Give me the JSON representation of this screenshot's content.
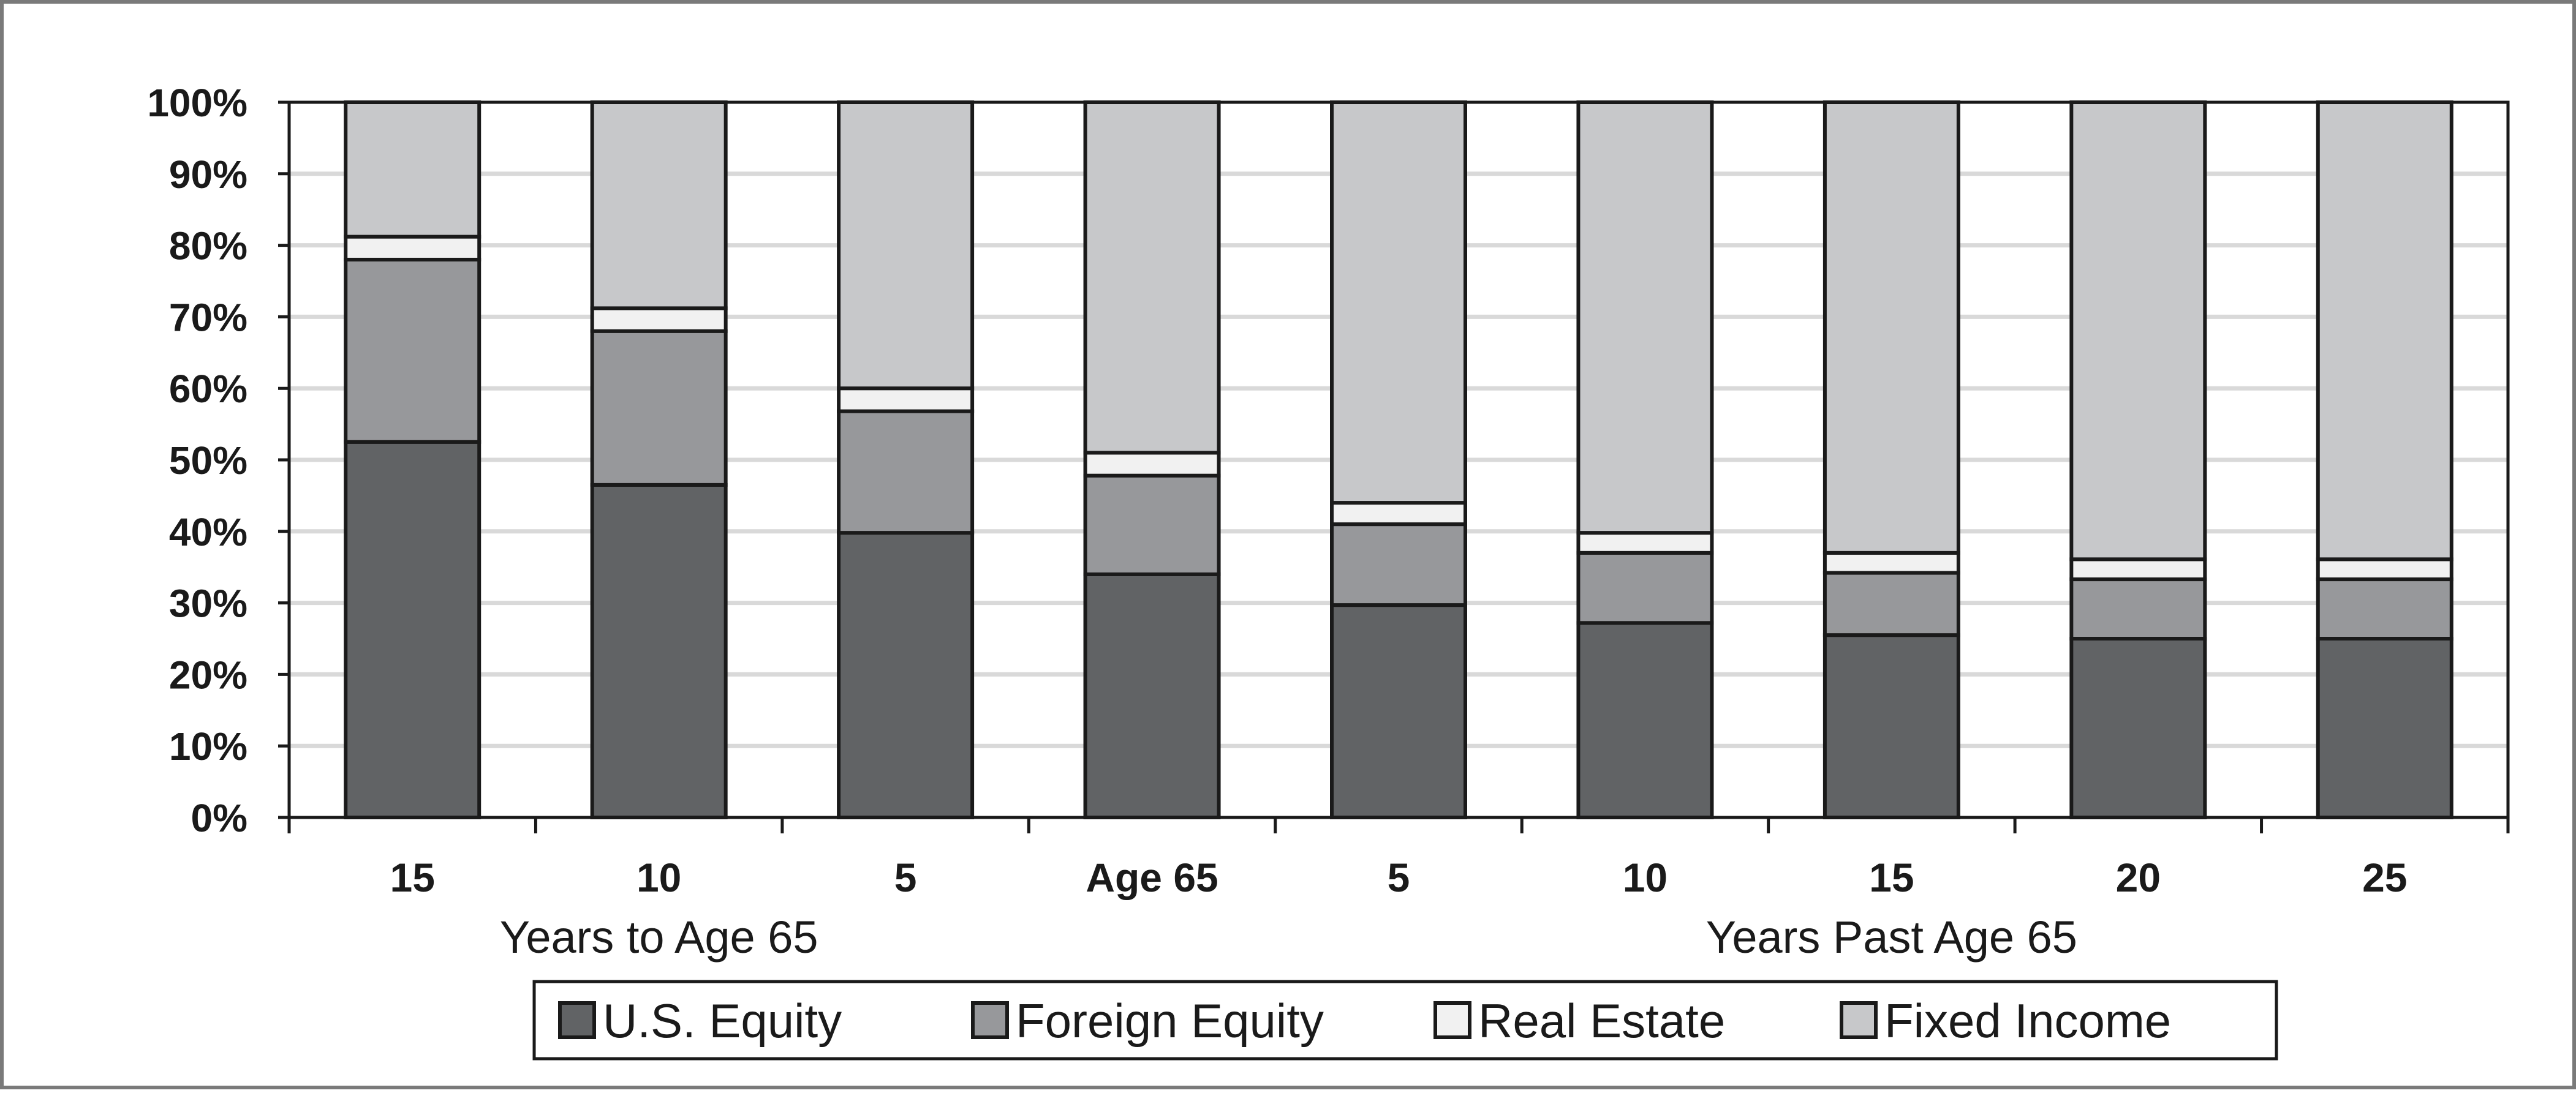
{
  "chart_data": {
    "type": "bar",
    "stacked": true,
    "categories": [
      "15",
      "10",
      "5",
      "Age 65",
      "5",
      "10",
      "15",
      "20",
      "25"
    ],
    "group_labels": [
      {
        "label": "Years to Age 65",
        "categories": [
          0,
          1,
          2
        ]
      },
      {
        "label": "Years Past Age 65",
        "categories": [
          4,
          5,
          6,
          7,
          8
        ]
      }
    ],
    "series": [
      {
        "name": "U.S. Equity",
        "color": "#616365",
        "values": [
          52.5,
          46.5,
          39.8,
          34,
          29.7,
          27.2,
          25.5,
          25,
          25
        ]
      },
      {
        "name": "Foreign Equity",
        "color": "#97989b",
        "values": [
          25.5,
          21.5,
          17,
          13.8,
          11.3,
          9.8,
          8.7,
          8.3,
          8.3
        ]
      },
      {
        "name": "Real Estate",
        "color": "#f1f1f1",
        "values": [
          3.2,
          3.2,
          3.2,
          3.2,
          3,
          2.8,
          2.8,
          2.8,
          2.8
        ]
      },
      {
        "name": "Fixed Income",
        "color": "#c7c8ca",
        "values": [
          18.8,
          28.8,
          40,
          49,
          56,
          60.2,
          63,
          63.9,
          63.9
        ]
      }
    ],
    "y_ticks": [
      "0%",
      "10%",
      "20%",
      "30%",
      "40%",
      "50%",
      "60%",
      "70%",
      "80%",
      "90%",
      "100%"
    ],
    "ylim": [
      0,
      100
    ],
    "grid": true,
    "legend_position": "bottom"
  }
}
